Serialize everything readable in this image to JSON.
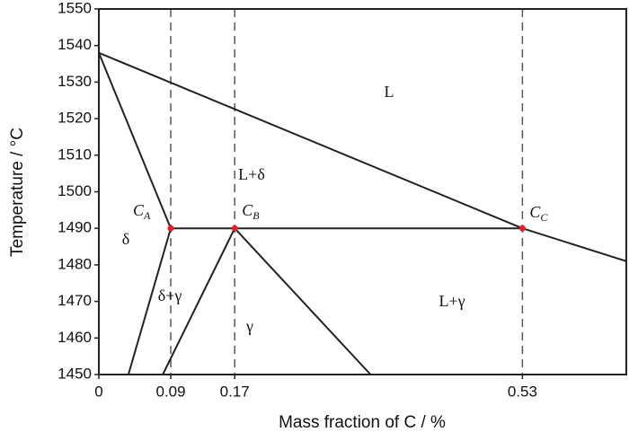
{
  "chart_data": {
    "type": "line",
    "xlabel": "Mass fraction of C / %",
    "ylabel": "Temperature / °C",
    "xlim": [
      0,
      0.66
    ],
    "ylim": [
      1450,
      1550
    ],
    "xticks": [
      0,
      0.09,
      0.17,
      0.53
    ],
    "yticks": [
      1450,
      1460,
      1470,
      1480,
      1490,
      1500,
      1510,
      1520,
      1530,
      1540,
      1550
    ],
    "xgrid": "dashed",
    "series": [
      {
        "color": "#222222",
        "x": [
          0,
          0.53,
          0.66
        ],
        "values": [
          1538,
          1490,
          1481
        ]
      },
      {
        "color": "#222222",
        "x": [
          0,
          0.09
        ],
        "values": [
          1538,
          1490
        ]
      },
      {
        "color": "#222222",
        "x": [
          0.09,
          0.53
        ],
        "values": [
          1490,
          1490
        ]
      },
      {
        "color": "#222222",
        "x": [
          0.09,
          0.037
        ],
        "values": [
          1490,
          1450
        ]
      },
      {
        "color": "#222222",
        "x": [
          0.17,
          0.08
        ],
        "values": [
          1490,
          1450
        ]
      },
      {
        "color": "#222222",
        "x": [
          0.17,
          0.34
        ],
        "values": [
          1490,
          1450
        ]
      }
    ],
    "points": {
      "color": "#e0202a",
      "x": [
        0.09,
        0.17,
        0.53
      ],
      "values": [
        1490,
        1490,
        1490
      ],
      "labels": [
        {
          "main": "C",
          "sub": "A"
        },
        {
          "main": "C",
          "sub": "B"
        },
        {
          "main": "C",
          "sub": "C"
        }
      ]
    },
    "annotations": [
      "L",
      "L+δ",
      "δ",
      "δ+γ",
      "γ",
      "L+γ"
    ]
  }
}
